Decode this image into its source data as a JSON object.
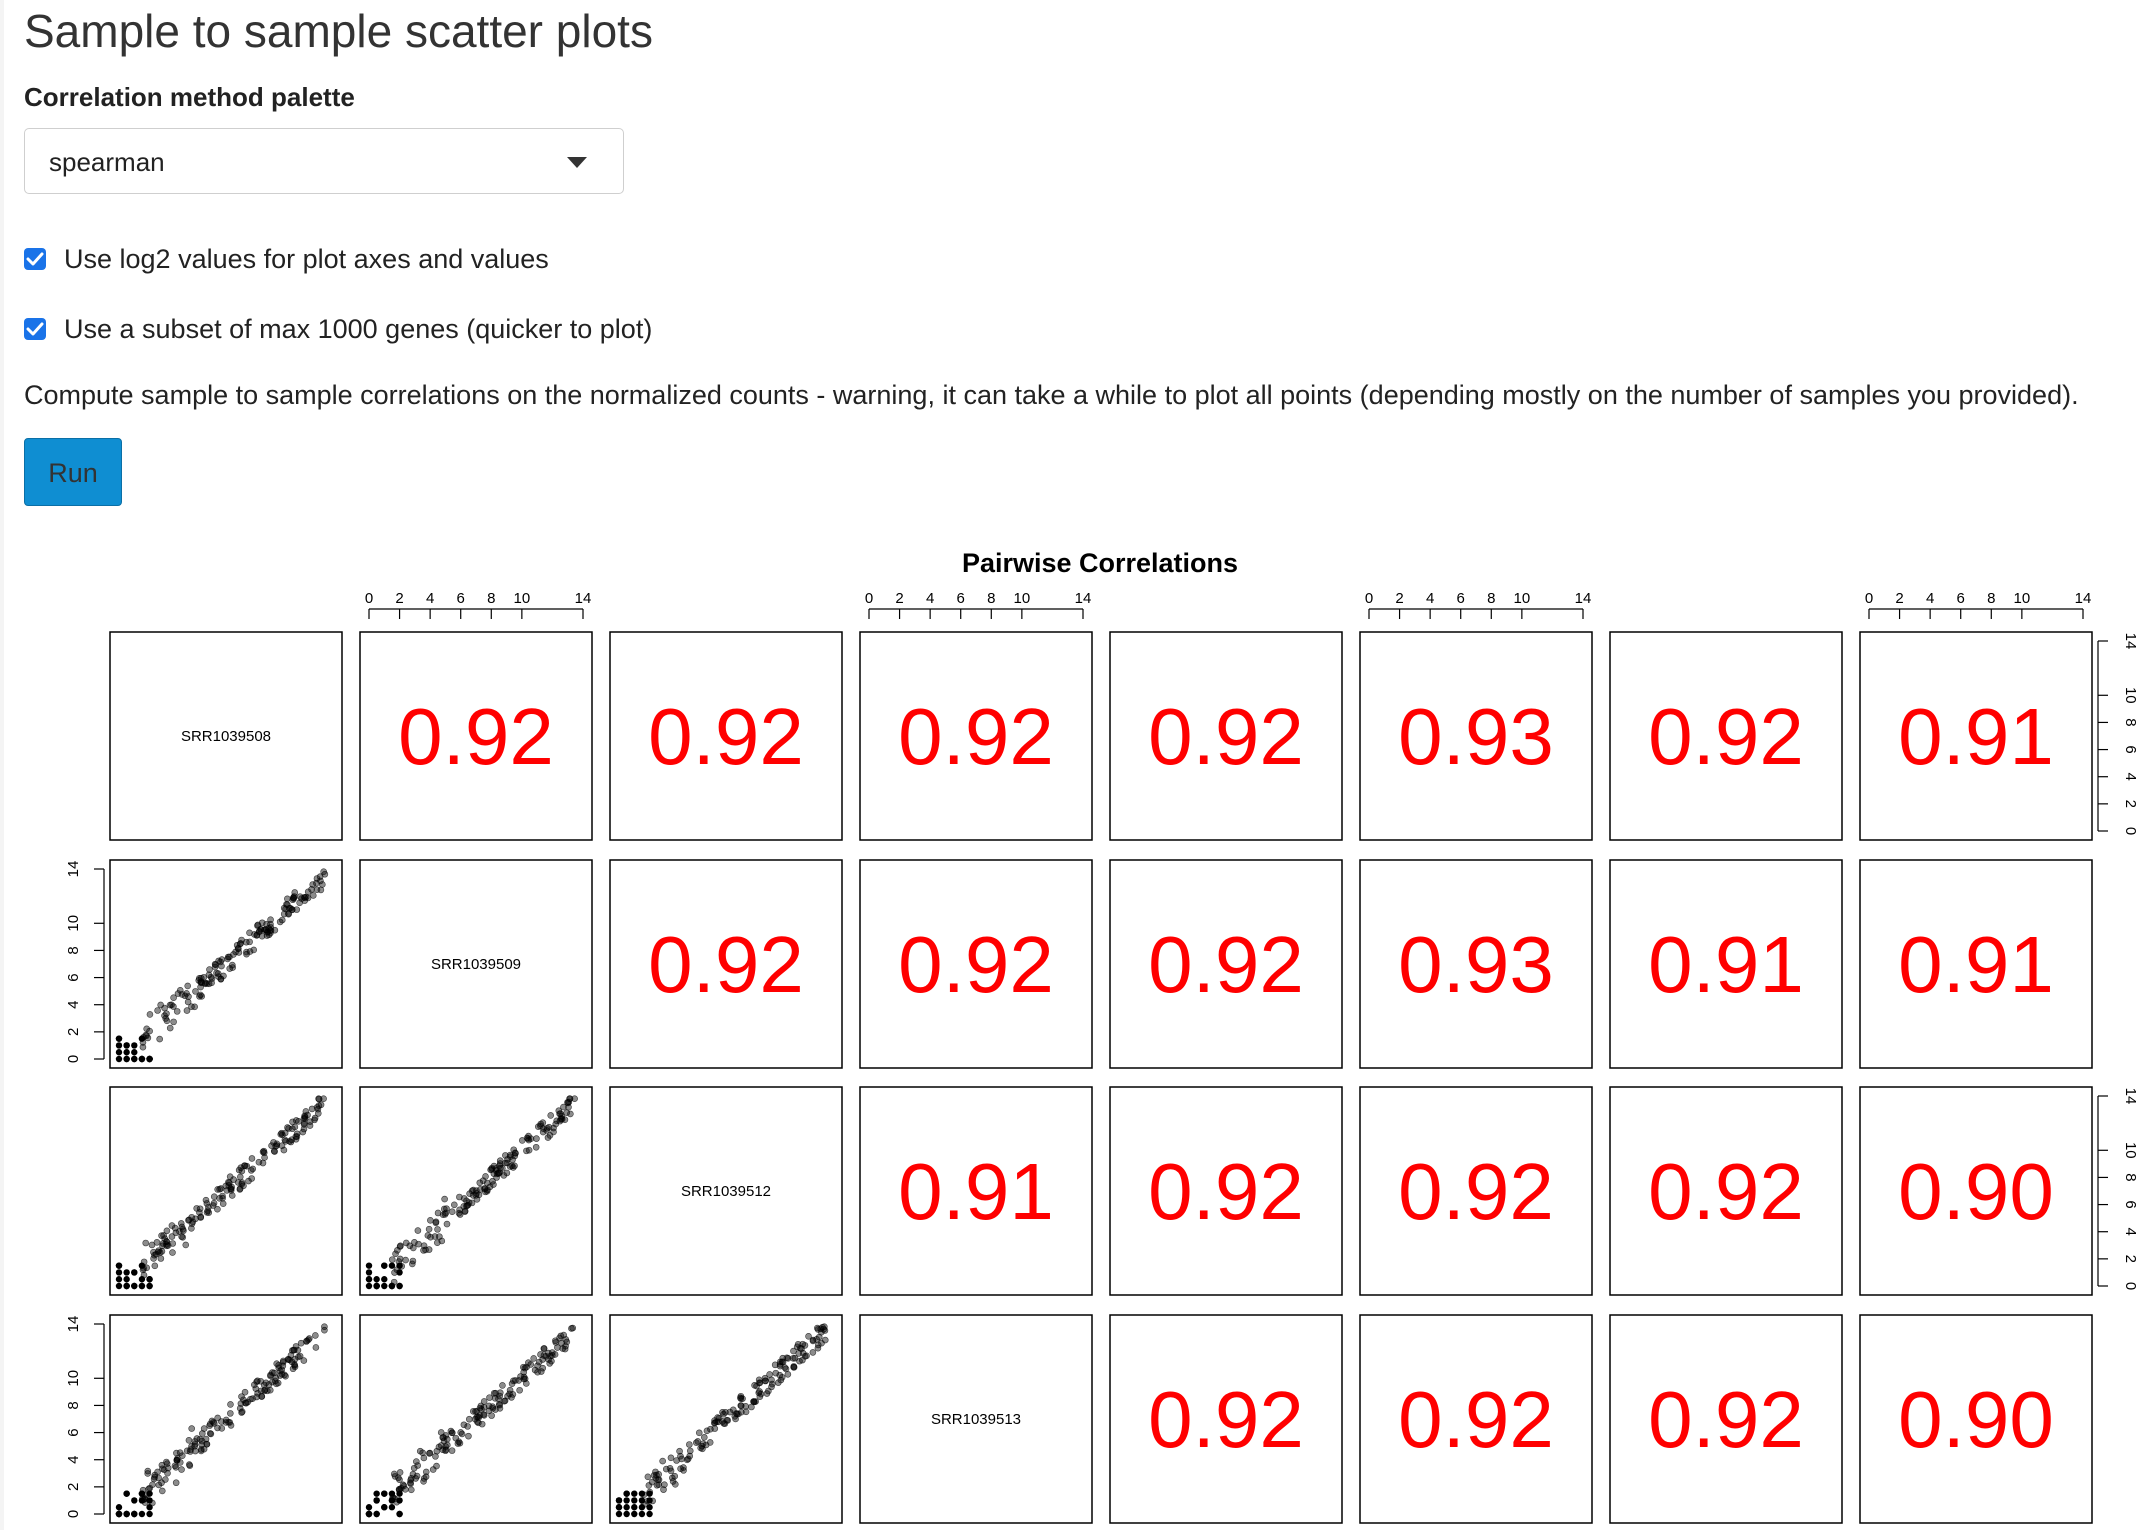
{
  "page": {
    "title": "Sample to sample scatter plots",
    "select_label": "Correlation method palette",
    "select_value": "spearman",
    "checkbox_log2": {
      "label": "Use log2 values for plot axes and values",
      "checked": true
    },
    "checkbox_subset": {
      "label": "Use a subset of max 1000 genes (quicker to plot)",
      "checked": true
    },
    "help_text": "Compute sample to sample correlations on the normalized counts - warning, it can take a while to plot all points (depending mostly on the number of samples you provided).",
    "run_label": "Run"
  },
  "colors": {
    "accent": "#0f8ed2",
    "checkbox": "#1a73e8",
    "correlation_text": "#ff0000",
    "points": "#000000"
  },
  "chart_data": {
    "type": "scatter",
    "title": "Pairwise Correlations",
    "samples": [
      "SRR1039508",
      "SRR1039509",
      "SRR1039512",
      "SRR1039513",
      "",
      "",
      "",
      ""
    ],
    "axis_range": [
      0,
      14
    ],
    "tick_values": [
      0,
      2,
      4,
      6,
      8,
      10,
      14
    ],
    "correlations": [
      [
        null,
        "0.92",
        "0.92",
        "0.92",
        "0.92",
        "0.93",
        "0.92",
        "0.91"
      ],
      [
        null,
        null,
        "0.92",
        "0.92",
        "0.92",
        "0.93",
        "0.91",
        "0.91"
      ],
      [
        null,
        null,
        null,
        "0.91",
        "0.92",
        "0.92",
        "0.92",
        "0.90"
      ],
      [
        null,
        null,
        null,
        null,
        "0.92",
        "0.92",
        "0.92",
        "0.90"
      ]
    ],
    "lower_panels": "scatter of log2 normalized counts, points along y = x",
    "rows_visible": 4,
    "cols": 8
  }
}
